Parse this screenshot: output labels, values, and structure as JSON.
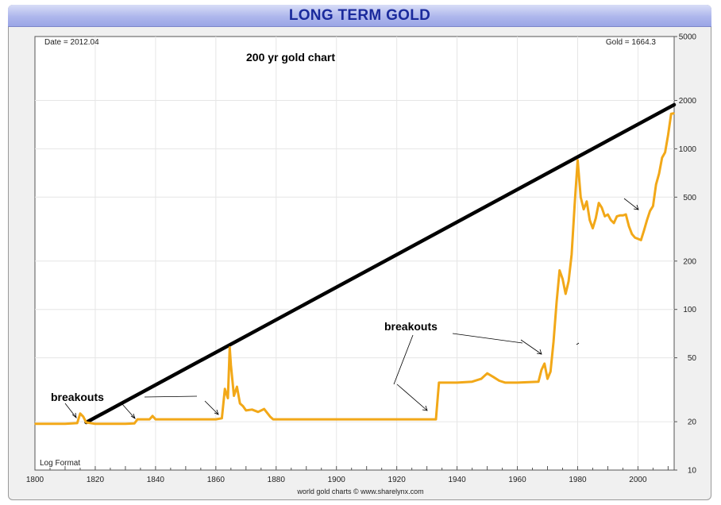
{
  "header": {
    "title": "LONG TERM GOLD"
  },
  "footer": {
    "credit": "world gold charts © www.sharelynx.com"
  },
  "chart_data": {
    "type": "line",
    "title": "LONG TERM GOLD",
    "scale": "log",
    "grid": true,
    "xlim": [
      1800,
      2012
    ],
    "ylim": [
      10,
      5000
    ],
    "x_ticks": [
      1800,
      1820,
      1840,
      1860,
      1880,
      1900,
      1920,
      1940,
      1960,
      1980,
      2000
    ],
    "y_ticks": [
      10,
      20,
      50,
      100,
      200,
      500,
      1000,
      2000,
      5000
    ],
    "corner_labels": {
      "date": "Date = 2012.04",
      "gold": "Gold = 1664.3",
      "format": "Log Format"
    },
    "annotations": {
      "chart_note": "200 yr gold chart",
      "breakouts_left": "breakouts",
      "breakouts_right": "breakouts"
    },
    "series": [
      {
        "color": "#f2a818",
        "points": [
          [
            1800,
            19.4
          ],
          [
            1810,
            19.4
          ],
          [
            1814,
            19.6
          ],
          [
            1815,
            22.5
          ],
          [
            1816,
            21.5
          ],
          [
            1817,
            19.8
          ],
          [
            1820,
            19.4
          ],
          [
            1830,
            19.4
          ],
          [
            1833,
            19.5
          ],
          [
            1834,
            20.7
          ],
          [
            1838,
            20.7
          ],
          [
            1839,
            21.7
          ],
          [
            1840,
            20.7
          ],
          [
            1860,
            20.7
          ],
          [
            1862,
            21
          ],
          [
            1863,
            32
          ],
          [
            1864,
            28
          ],
          [
            1864.6,
            58
          ],
          [
            1865,
            45
          ],
          [
            1866,
            29
          ],
          [
            1867,
            33
          ],
          [
            1868,
            26
          ],
          [
            1869,
            25
          ],
          [
            1870,
            23.5
          ],
          [
            1872,
            23.8
          ],
          [
            1874,
            23
          ],
          [
            1876,
            24
          ],
          [
            1878,
            21.5
          ],
          [
            1879,
            20.7
          ],
          [
            1900,
            20.7
          ],
          [
            1920,
            20.7
          ],
          [
            1933,
            20.7
          ],
          [
            1934,
            35
          ],
          [
            1940,
            35
          ],
          [
            1945,
            35.5
          ],
          [
            1948,
            37
          ],
          [
            1950,
            40
          ],
          [
            1952,
            38
          ],
          [
            1954,
            36
          ],
          [
            1956,
            35
          ],
          [
            1960,
            35
          ],
          [
            1967,
            35.5
          ],
          [
            1968,
            42
          ],
          [
            1969,
            46
          ],
          [
            1970,
            37
          ],
          [
            1971,
            41
          ],
          [
            1972,
            63
          ],
          [
            1973,
            110
          ],
          [
            1974,
            175
          ],
          [
            1975,
            155
          ],
          [
            1976,
            125
          ],
          [
            1977,
            150
          ],
          [
            1978,
            220
          ],
          [
            1979,
            450
          ],
          [
            1980,
            850
          ],
          [
            1981,
            500
          ],
          [
            1982,
            420
          ],
          [
            1983,
            470
          ],
          [
            1984,
            360
          ],
          [
            1985,
            320
          ],
          [
            1986,
            370
          ],
          [
            1987,
            460
          ],
          [
            1988,
            430
          ],
          [
            1989,
            380
          ],
          [
            1990,
            390
          ],
          [
            1991,
            360
          ],
          [
            1992,
            345
          ],
          [
            1993,
            380
          ],
          [
            1994,
            385
          ],
          [
            1995,
            385
          ],
          [
            1996,
            390
          ],
          [
            1997,
            330
          ],
          [
            1998,
            295
          ],
          [
            1999,
            280
          ],
          [
            2000,
            275
          ],
          [
            2001,
            270
          ],
          [
            2002,
            310
          ],
          [
            2003,
            360
          ],
          [
            2004,
            410
          ],
          [
            2005,
            440
          ],
          [
            2006,
            600
          ],
          [
            2007,
            700
          ],
          [
            2008,
            880
          ],
          [
            2009,
            950
          ],
          [
            2010,
            1220
          ],
          [
            2011,
            1650
          ],
          [
            2012,
            1664.3
          ]
        ]
      }
    ],
    "trendline": {
      "color": "#000000",
      "from": [
        1817,
        19.8
      ],
      "to": [
        2012,
        1880
      ]
    }
  }
}
